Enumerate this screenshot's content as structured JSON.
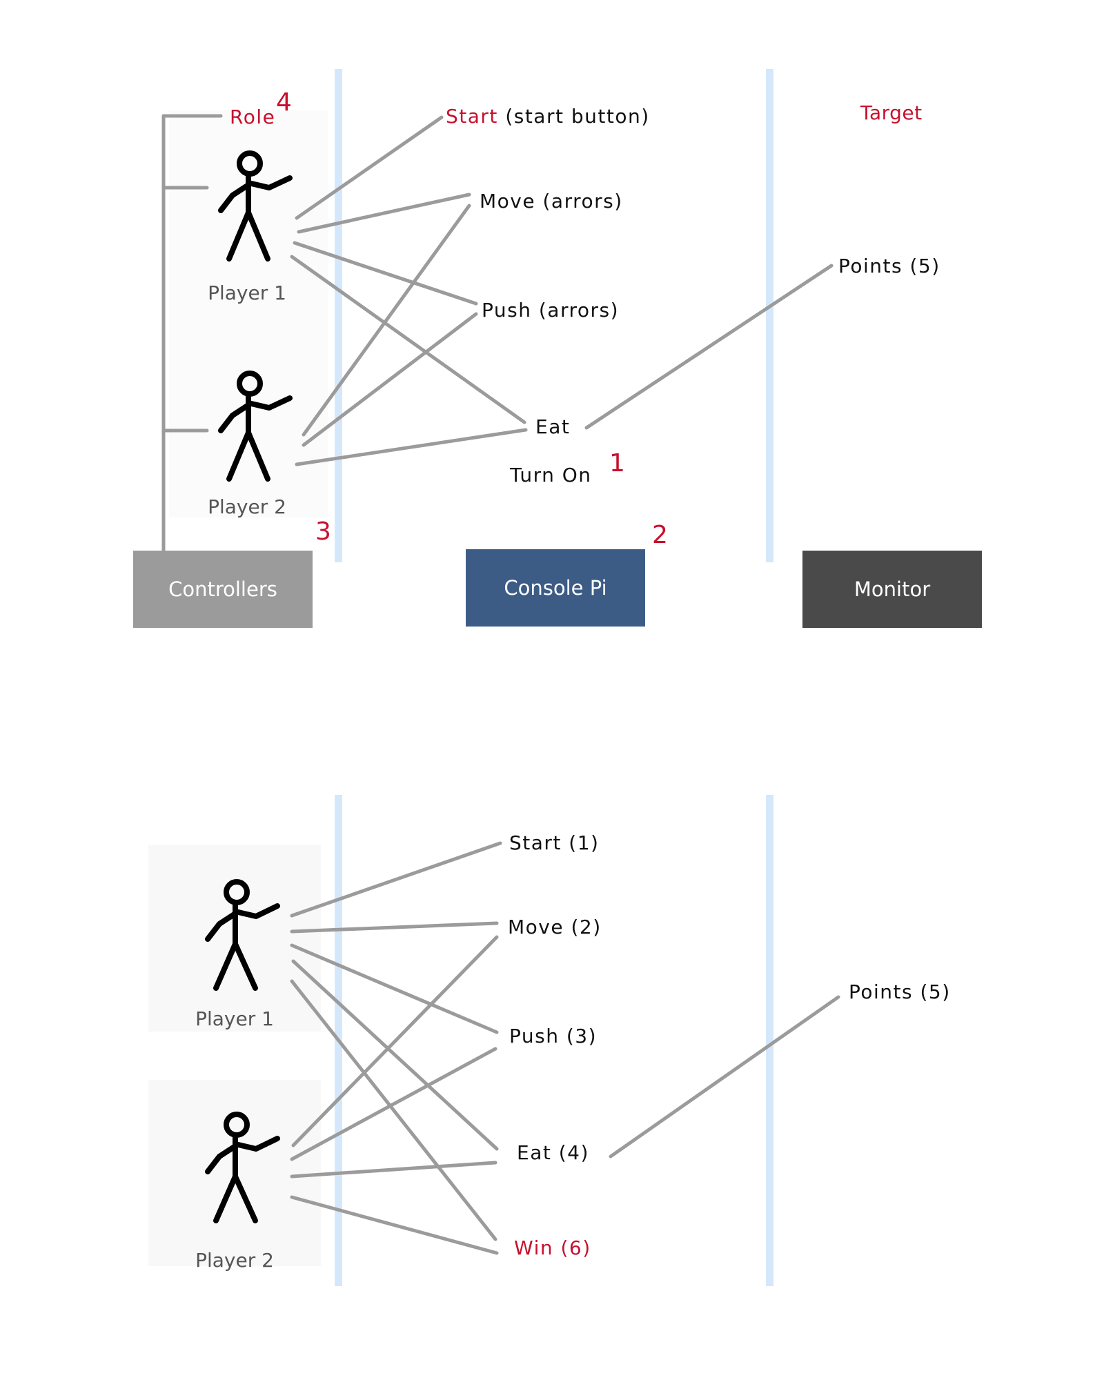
{
  "colors": {
    "line": "#9b9b9b",
    "lane": "#d5e8fb",
    "accent_red": "#c8102e",
    "controllers_box": "#9b9b9b",
    "console_box": "#3c5c86",
    "monitor_box": "#4a4a4a"
  },
  "top": {
    "role_label": "Role",
    "role_number": "4",
    "target_label": "Target",
    "player1": "Player 1",
    "player2": "Player 2",
    "actions": {
      "start_red": "Start",
      "start_rest": "(start button)",
      "move": "Move (arrors)",
      "push": "Push (arrors)",
      "eat": "Eat",
      "turn_on": "Turn On"
    },
    "points": "Points (5)",
    "numbers": {
      "n1": "1",
      "n2": "2",
      "n3": "3"
    },
    "boxes": {
      "controllers": "Controllers",
      "console": "Console Pi",
      "monitor": "Monitor"
    }
  },
  "bottom": {
    "player1": "Player 1",
    "player2": "Player 2",
    "actions": {
      "start": "Start (1)",
      "move": "Move (2)",
      "push": "Push (3)",
      "eat": "Eat (4)",
      "win": "Win (6)"
    },
    "points": "Points (5)"
  },
  "icons": {
    "player1_top": "stick-figure-icon",
    "player2_top": "stick-figure-icon",
    "player1_bottom": "stick-figure-icon",
    "player2_bottom": "stick-figure-icon"
  }
}
